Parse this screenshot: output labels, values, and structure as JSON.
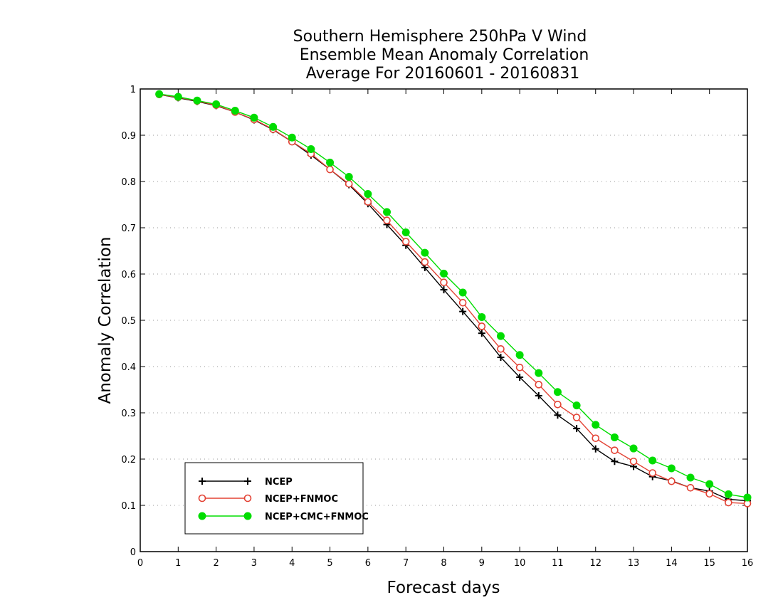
{
  "chart_data": {
    "type": "line",
    "title": [
      "Southern Hemisphere 250hPa V Wind",
      "Ensemble Mean Anomaly Correlation",
      "Average For 20160601 - 20160831"
    ],
    "xlabel": "Forecast days",
    "ylabel": "Anomaly Correlation",
    "xlim": [
      0,
      16
    ],
    "ylim": [
      0,
      1
    ],
    "xticks": [
      "0",
      "1",
      "2",
      "3",
      "4",
      "5",
      "6",
      "7",
      "8",
      "9",
      "10",
      "11",
      "12",
      "13",
      "14",
      "15",
      "16"
    ],
    "yticks": [
      "0",
      "0.1",
      "0.2",
      "0.3",
      "0.4",
      "0.5",
      "0.6",
      "0.7",
      "0.8",
      "0.9",
      "1"
    ],
    "grid": "horizontal-dotted",
    "legend_position": "bottom-left",
    "x": [
      0.5,
      1,
      1.5,
      2,
      2.5,
      3,
      3.5,
      4,
      4.5,
      5,
      5.5,
      6,
      6.5,
      7,
      7.5,
      8,
      8.5,
      9,
      9.5,
      10,
      10.5,
      11,
      11.5,
      12,
      12.5,
      13,
      13.5,
      14,
      14.5,
      15,
      15.5,
      16
    ],
    "series": [
      {
        "name": "NCEP",
        "color": "#000000",
        "marker": "plus",
        "values": [
          0.988,
          0.981,
          0.973,
          0.964,
          0.95,
          0.933,
          0.912,
          0.886,
          0.857,
          0.826,
          0.793,
          0.752,
          0.707,
          0.662,
          0.614,
          0.566,
          0.519,
          0.472,
          0.42,
          0.377,
          0.337,
          0.295,
          0.266,
          0.222,
          0.195,
          0.184,
          0.162,
          0.153,
          0.138,
          0.131,
          0.113,
          0.11
        ]
      },
      {
        "name": "NCEP+FNMOC",
        "color": "#e34234",
        "marker": "open-circle",
        "values": [
          0.988,
          0.982,
          0.974,
          0.965,
          0.95,
          0.934,
          0.913,
          0.886,
          0.86,
          0.826,
          0.795,
          0.756,
          0.716,
          0.67,
          0.626,
          0.582,
          0.538,
          0.487,
          0.438,
          0.398,
          0.361,
          0.318,
          0.29,
          0.245,
          0.219,
          0.195,
          0.17,
          0.152,
          0.138,
          0.125,
          0.106,
          0.104
        ]
      },
      {
        "name": "NCEP+CMC+FNMOC",
        "color": "#00dd00",
        "marker": "filled-circle",
        "values": [
          0.989,
          0.983,
          0.975,
          0.967,
          0.953,
          0.938,
          0.918,
          0.895,
          0.87,
          0.841,
          0.81,
          0.773,
          0.734,
          0.69,
          0.646,
          0.601,
          0.56,
          0.507,
          0.466,
          0.425,
          0.386,
          0.345,
          0.316,
          0.274,
          0.247,
          0.223,
          0.197,
          0.18,
          0.16,
          0.146,
          0.124,
          0.117
        ]
      }
    ]
  }
}
